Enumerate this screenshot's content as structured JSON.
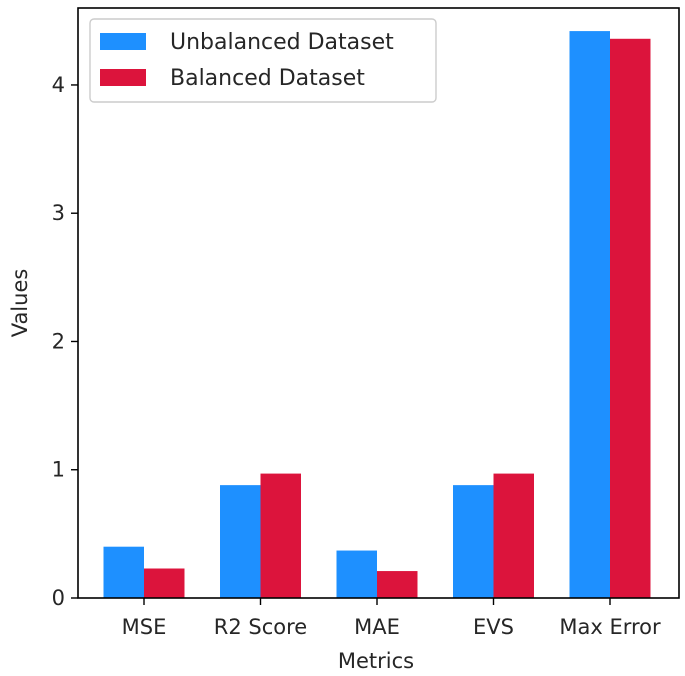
{
  "chart_data": {
    "type": "bar",
    "categories": [
      "MSE",
      "R2 Score",
      "MAE",
      "EVS",
      "Max Error"
    ],
    "series": [
      {
        "name": "Unbalanced Dataset",
        "color": "#1e90ff",
        "values": [
          0.4,
          0.88,
          0.37,
          0.88,
          4.42
        ]
      },
      {
        "name": "Balanced Dataset",
        "color": "#dc143c",
        "values": [
          0.23,
          0.97,
          0.21,
          0.97,
          4.36
        ]
      }
    ],
    "title": "",
    "xlabel": "Metrics",
    "ylabel": "Values",
    "ylim": [
      0,
      4.6
    ],
    "yticks": [
      "0",
      "1",
      "2",
      "3",
      "4"
    ],
    "grid": false,
    "legend_position": "top-left"
  }
}
